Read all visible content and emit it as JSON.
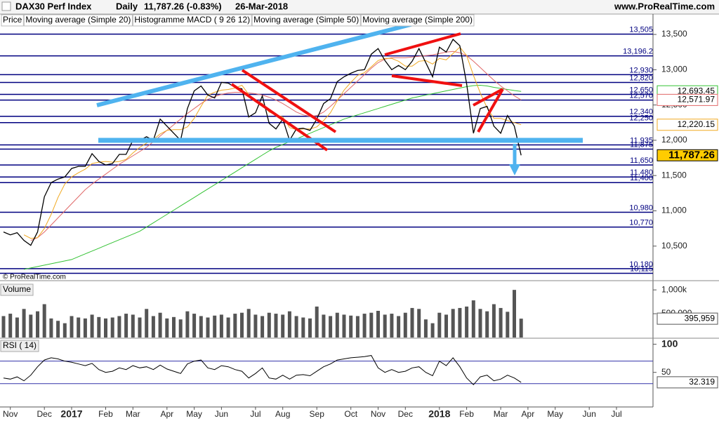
{
  "header": {
    "title": "DAX30 Perf Index",
    "period": "Daily",
    "quote": "11,787.26 (-0.83%)",
    "date": "26-Mar-2018",
    "site": "www.ProRealTime.com",
    "watermark": "© ProRealTime.com"
  },
  "chart_data": [
    {
      "type": "line",
      "categories": [
        null,
        "Nov",
        null,
        null,
        null,
        null,
        "Dec",
        null,
        null,
        null,
        "2017",
        null,
        null,
        null,
        null,
        "Feb",
        null,
        null,
        null,
        "Mar",
        null,
        null,
        null,
        null,
        "Apr",
        null,
        null,
        null,
        "May",
        null,
        null,
        null,
        "Jun",
        null,
        null,
        null,
        null,
        "Jul",
        null,
        null,
        null,
        "Aug",
        null,
        null,
        null,
        null,
        "Sep",
        null,
        null,
        null,
        null,
        "Oct",
        null,
        null,
        null,
        "Nov",
        null,
        null,
        null,
        "Dec",
        null,
        null,
        null,
        null,
        "2018",
        null,
        null,
        null,
        "Feb",
        null,
        null,
        null,
        null,
        "Mar",
        null,
        null,
        null,
        "Apr",
        null,
        null,
        null,
        "May",
        null,
        null,
        null,
        null,
        "Jun",
        null,
        null,
        null,
        "Jul",
        null,
        null,
        null,
        null
      ],
      "series": [
        {
          "name": "Price",
          "color": "#000000",
          "end_label": {
            "value": 11787.26,
            "label": "11,787.26"
          },
          "values": [
            10700,
            10660,
            10690,
            10580,
            10510,
            10700,
            11200,
            11400,
            11450,
            11480,
            11600,
            11630,
            11630,
            11810,
            11700,
            11650,
            11670,
            11800,
            11800,
            12000,
            12000,
            12050,
            12000,
            12300,
            12200,
            12100,
            12000,
            12450,
            12700,
            12770,
            12640,
            12600,
            12820,
            12810,
            12750,
            12730,
            12330,
            12390,
            12630,
            12240,
            12160,
            12300,
            12000,
            12160,
            12170,
            12140,
            12300,
            12520,
            12590,
            12830,
            12900,
            12950,
            12990,
            13000,
            13220,
            13300,
            13130,
            13000,
            13060,
            13000,
            13120,
            13300,
            13100,
            12900,
            13320,
            13250,
            13430,
            13340,
            12800,
            12100,
            12450,
            12480,
            12200,
            12100,
            12350,
            12200,
            11787.26,
            null,
            null,
            null,
            null,
            null,
            null,
            null,
            null,
            null,
            null,
            null,
            null,
            null,
            null,
            null,
            null,
            null,
            null
          ]
        },
        {
          "name": "Moving average (Simple 20)",
          "color": "#f0a820",
          "end_label": {
            "value": 12220.15,
            "label": "12,220.15"
          },
          "values": [
            null,
            null,
            null,
            10660,
            10610,
            10620,
            10750,
            10950,
            11190,
            11380,
            11480,
            11540,
            11590,
            11670,
            11690,
            11700,
            11690,
            11700,
            11730,
            11820,
            11900,
            11960,
            12010,
            12090,
            12140,
            12150,
            12150,
            12190,
            12310,
            12480,
            12640,
            12680,
            12710,
            12720,
            12740,
            12780,
            12650,
            12550,
            12520,
            12400,
            12360,
            12330,
            12180,
            12150,
            12160,
            12160,
            12190,
            12280,
            12390,
            12560,
            12710,
            12820,
            12920,
            12960,
            13040,
            13130,
            13160,
            13160,
            13120,
            13050,
            13050,
            13120,
            13130,
            13080,
            13160,
            13140,
            13230,
            13320,
            13200,
            12920,
            12670,
            12460,
            12310,
            12310,
            12280,
            12250,
            12220.15,
            null,
            null,
            null,
            null,
            null,
            null,
            null,
            null,
            null,
            null,
            null,
            null,
            null,
            null,
            null,
            null,
            null,
            null
          ]
        },
        {
          "name": "Moving average (Simple 50)",
          "color": "#e06868",
          "end_label": {
            "value": 12571.97,
            "label": "12,571.97"
          },
          "values": [
            null,
            null,
            null,
            null,
            10580,
            10620,
            10700,
            10800,
            10900,
            11000,
            11100,
            11200,
            11300,
            11380,
            11450,
            11520,
            11590,
            11660,
            11720,
            11780,
            11840,
            11900,
            11980,
            12060,
            12140,
            12220,
            12300,
            12380,
            12450,
            12520,
            12580,
            12620,
            12650,
            12670,
            12680,
            12680,
            12670,
            12660,
            12640,
            12610,
            12570,
            12520,
            12460,
            12400,
            12360,
            12340,
            12350,
            12400,
            12480,
            12570,
            12660,
            12750,
            12840,
            12930,
            13020,
            13100,
            13150,
            13170,
            13170,
            13170,
            13180,
            13190,
            13200,
            13210,
            13230,
            13250,
            13260,
            13240,
            13200,
            13120,
            13030,
            12940,
            12850,
            12770,
            12700,
            12630,
            12571.97,
            null,
            null,
            null,
            null,
            null,
            null,
            null,
            null,
            null,
            null,
            null,
            null,
            null,
            null,
            null,
            null,
            null,
            null
          ]
        },
        {
          "name": "Moving average (Simple 200)",
          "color": "#33c233",
          "end_label": {
            "value": 12693.45,
            "label": "12,693.45"
          },
          "values": [
            null,
            null,
            null,
            10170,
            10190,
            10210,
            10230,
            10250,
            10270,
            10290,
            10310,
            10350,
            10390,
            10430,
            10470,
            10510,
            10550,
            10590,
            10630,
            10670,
            10710,
            10770,
            10830,
            10890,
            10950,
            11010,
            11070,
            11130,
            11190,
            11250,
            11310,
            11370,
            11430,
            11490,
            11550,
            11610,
            11670,
            11730,
            11790,
            11850,
            11900,
            11940,
            11980,
            12020,
            12060,
            12100,
            12140,
            12180,
            12220,
            12260,
            12300,
            12330,
            12360,
            12390,
            12420,
            12450,
            12480,
            12510,
            12540,
            12570,
            12600,
            12620,
            12640,
            12660,
            12680,
            12700,
            12720,
            12740,
            12760,
            12775,
            12780,
            12770,
            12750,
            12735,
            12720,
            12705,
            12693.45,
            null,
            null,
            null,
            null,
            null,
            null,
            null,
            null,
            null,
            null,
            null,
            null,
            null,
            null,
            null,
            null,
            null,
            null
          ]
        }
      ],
      "macd_label": "Histogramme MACD ( 9 26 12)",
      "ylim": [
        10050,
        13620
      ],
      "yticks": [
        {
          "value": 13500,
          "label": "13,500"
        },
        {
          "value": 13000,
          "label": "13,000"
        },
        {
          "value": 12500,
          "label": "12,500"
        },
        {
          "value": 12000,
          "label": "12,000"
        },
        {
          "value": 11500,
          "label": "11,500"
        },
        {
          "value": 11000,
          "label": "11,000"
        },
        {
          "value": 10500,
          "label": "10,500"
        }
      ],
      "levels": [
        {
          "value": 13505,
          "label": "13,505"
        },
        {
          "value": 13196.2,
          "label": "13,196.2"
        },
        {
          "value": 12930,
          "label": "12,930"
        },
        {
          "value": 12820,
          "label": "12,820"
        },
        {
          "value": 12650,
          "label": "12,650"
        },
        {
          "value": 12570,
          "label": "12,570"
        },
        {
          "value": 12340,
          "label": "12,340"
        },
        {
          "value": 12250,
          "label": "12,250"
        },
        {
          "value": 11935,
          "label": "11,935"
        },
        {
          "value": 11875,
          "label": "11,875"
        },
        {
          "value": 11650,
          "label": "11,650"
        },
        {
          "value": 11480,
          "label": "11,480"
        },
        {
          "value": 11400,
          "label": "11,400"
        },
        {
          "value": 10980,
          "label": "10,980"
        },
        {
          "value": 10770,
          "label": "10,770"
        },
        {
          "value": 10180,
          "label": "10,180"
        },
        {
          "value": 10115,
          "label": "10,115"
        }
      ]
    },
    {
      "type": "bar",
      "label": "Volume",
      "color": "#555555",
      "values": [
        450000,
        500000,
        420000,
        600000,
        480000,
        550000,
        700000,
        400000,
        350000,
        300000,
        450000,
        420000,
        400000,
        480000,
        430000,
        400000,
        420000,
        450000,
        500000,
        480000,
        420000,
        600000,
        450000,
        520000,
        400000,
        430000,
        380000,
        550000,
        500000,
        450000,
        420000,
        460000,
        480000,
        420000,
        500000,
        520000,
        600000,
        480000,
        450000,
        520000,
        500000,
        480000,
        550000,
        450000,
        420000,
        400000,
        650000,
        480000,
        450000,
        520000,
        480000,
        460000,
        450000,
        500000,
        520000,
        560000,
        480000,
        500000,
        450000,
        520000,
        620000,
        600000,
        380000,
        300000,
        520000,
        480000,
        600000,
        620000,
        650000,
        780000,
        600000,
        550000,
        700000,
        620000,
        540000,
        1000000,
        395959,
        null,
        null,
        null,
        null,
        null,
        null,
        null,
        null,
        null,
        null,
        null,
        null,
        null,
        null,
        null,
        null,
        null,
        null
      ],
      "ylim": [
        0,
        1120000
      ],
      "yticks": [
        {
          "value": 1000000,
          "label": "1,000k"
        },
        {
          "value": 500000,
          "label": "500,000"
        }
      ],
      "end_label": {
        "value": 395959,
        "label": "395,959"
      }
    },
    {
      "type": "line",
      "label": "RSI ( 14)",
      "color": "#000000",
      "values": [
        40,
        38,
        42,
        35,
        45,
        60,
        72,
        76,
        74,
        70,
        68,
        65,
        62,
        66,
        55,
        50,
        52,
        58,
        55,
        62,
        58,
        60,
        55,
        63,
        56,
        52,
        48,
        65,
        70,
        72,
        58,
        55,
        62,
        60,
        55,
        52,
        40,
        48,
        58,
        40,
        38,
        45,
        38,
        45,
        46,
        44,
        52,
        60,
        65,
        72,
        74,
        76,
        77,
        78,
        80,
        58,
        50,
        55,
        50,
        52,
        58,
        60,
        50,
        44,
        70,
        62,
        76,
        60,
        40,
        28,
        42,
        45,
        35,
        38,
        45,
        40,
        32.319,
        null,
        null,
        null,
        null,
        null,
        null,
        null,
        null,
        null,
        null,
        null,
        null,
        null,
        null,
        null,
        null,
        null,
        null
      ],
      "ylim": [
        -9,
        107
      ],
      "yticks": [
        100,
        50
      ],
      "levels": [
        70,
        30
      ],
      "end_label": 32.319
    }
  ]
}
